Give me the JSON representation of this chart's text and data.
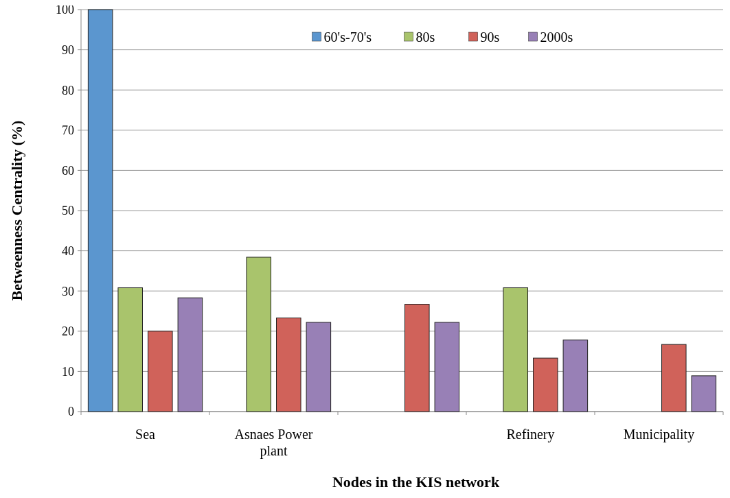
{
  "chart_data": {
    "type": "bar",
    "xlabel": "Nodes in the KIS network",
    "ylabel": "Betweenness Centrality (%)",
    "categories": [
      "Sea",
      "Asnaes Power plant",
      null,
      "Refinery",
      "Municipality"
    ],
    "series": [
      {
        "name": "60's-70's",
        "color": "#5b96cf",
        "values": [
          100,
          null,
          null,
          null,
          null
        ]
      },
      {
        "name": "80s",
        "color": "#a9c46c",
        "values": [
          30.8,
          38.4,
          null,
          30.8,
          null
        ]
      },
      {
        "name": "90s",
        "color": "#d0625a",
        "values": [
          20,
          23.3,
          26.7,
          13.3,
          16.7
        ]
      },
      {
        "name": "2000s",
        "color": "#9880b6",
        "values": [
          28.3,
          22.2,
          22.2,
          17.8,
          8.9
        ]
      }
    ],
    "ylim": [
      0,
      100
    ],
    "yticks": [
      0,
      10,
      20,
      30,
      40,
      50,
      60,
      70,
      80,
      90,
      100
    ],
    "grid": "y",
    "legend": "top right"
  }
}
